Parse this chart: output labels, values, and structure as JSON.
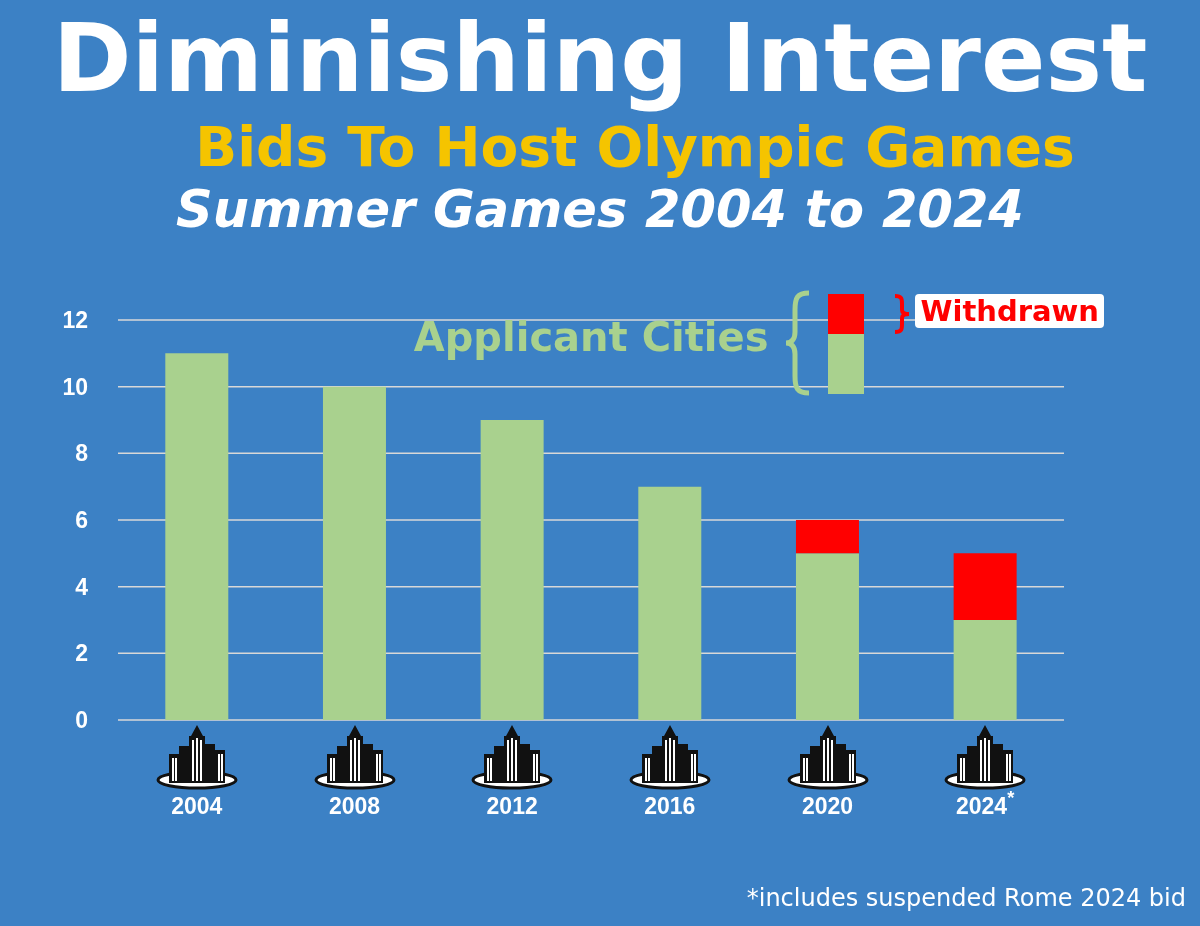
{
  "chart_data": {
    "type": "bar",
    "title": "Diminishing Interest",
    "subtitle": "Bids To Host Olympic Games\nSummer Games 2004 to 2024",
    "categories": [
      "2004",
      "2008",
      "2012",
      "2016",
      "2020",
      "2024$^{*}$"
    ],
    "series": [
      {
        "name": "Applicant Cities",
        "color": "#a9d18e",
        "values": [
          11,
          10,
          9,
          7,
          5,
          3
        ]
      },
      {
        "name": "Withdrawn",
        "color": "#ff0000",
        "values": [
          0,
          0,
          0,
          0,
          1,
          2
        ]
      }
    ],
    "stacked": true,
    "ylim": [
      0,
      12
    ],
    "yticks": [
      0,
      2,
      4,
      6,
      8,
      10,
      12
    ],
    "grid": "y",
    "legend": "top right",
    "annotations": [
      "*includes suspended Rome 2024 bid"
    ]
  }
}
